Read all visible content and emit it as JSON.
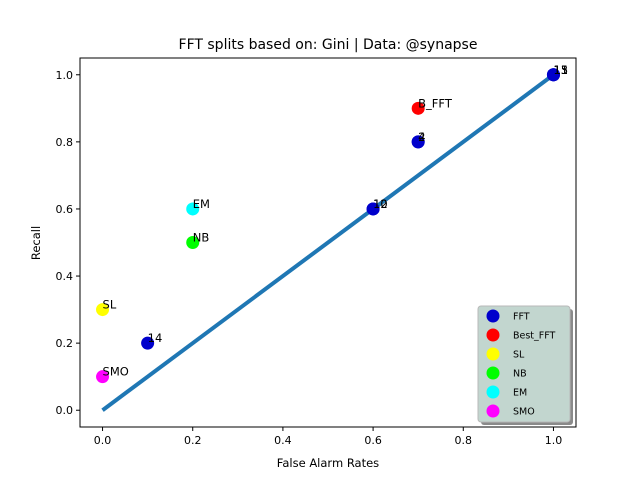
{
  "chart_data": {
    "type": "scatter",
    "title": "FFT splits based on: Gini  |  Data: @synapse",
    "xlabel": "False Alarm Rates",
    "ylabel": "Recall",
    "xlim": [
      -0.05,
      1.05
    ],
    "ylim": [
      -0.05,
      1.05
    ],
    "xticks": [
      "0.0",
      "0.2",
      "0.4",
      "0.6",
      "0.8",
      "1.0"
    ],
    "yticks": [
      "0.0",
      "0.2",
      "0.4",
      "0.6",
      "0.8",
      "1.0"
    ],
    "grid": false,
    "legend_position": "bottom-right",
    "diagonal_line": {
      "x": [
        0,
        1
      ],
      "y": [
        0,
        1
      ],
      "color": "#1f77b4"
    },
    "series": [
      {
        "name": "FFT",
        "color": "#0000cc",
        "points": [
          {
            "x": 0.1,
            "y": 0.2,
            "label": "14"
          },
          {
            "x": 0.6,
            "y": 0.6,
            "label": "10"
          },
          {
            "x": 0.6,
            "y": 0.6,
            "label": "12"
          },
          {
            "x": 0.7,
            "y": 0.8,
            "label": "2"
          },
          {
            "x": 0.7,
            "y": 0.8,
            "label": "4"
          },
          {
            "x": 1.0,
            "y": 1.0,
            "label": "11"
          },
          {
            "x": 1.0,
            "y": 1.0,
            "label": "13"
          },
          {
            "x": 1.0,
            "y": 1.0,
            "label": "15"
          }
        ]
      },
      {
        "name": "Best_FFT",
        "color": "#ff0000",
        "points": [
          {
            "x": 0.7,
            "y": 0.9,
            "label": "B_FFT"
          }
        ]
      },
      {
        "name": "SL",
        "color": "#ffff00",
        "points": [
          {
            "x": 0.0,
            "y": 0.3,
            "label": "SL"
          }
        ]
      },
      {
        "name": "NB",
        "color": "#00ff00",
        "points": [
          {
            "x": 0.2,
            "y": 0.5,
            "label": "NB"
          }
        ]
      },
      {
        "name": "EM",
        "color": "#00ffff",
        "points": [
          {
            "x": 0.2,
            "y": 0.6,
            "label": "EM"
          }
        ]
      },
      {
        "name": "SMO",
        "color": "#ff00ff",
        "points": [
          {
            "x": 0.0,
            "y": 0.1,
            "label": "SMO"
          }
        ]
      }
    ]
  }
}
